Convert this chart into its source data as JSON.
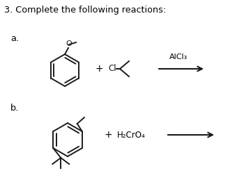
{
  "title": "3. Complete the following reactions:",
  "label_a": "a.",
  "label_b": "b.",
  "bg_color": "#ffffff",
  "text_color": "#000000",
  "title_fontsize": 9.2,
  "label_fontsize": 9.2,
  "line_color": "#1a1a1a",
  "line_width": 1.4,
  "catalyst_a": "AlCl₃",
  "reagent_b": "H₂CrO₄",
  "plus_sign": "+",
  "arrow_color": "#1a1a1a"
}
